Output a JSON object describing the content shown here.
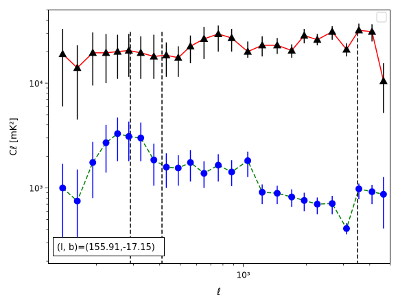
{
  "chart_data": {
    "type": "scatter",
    "xscale": "log",
    "yscale": "log",
    "xlabel": "ℓ",
    "ylabel": "Cℓ  [mK²]",
    "xlim": [
      118,
      5000
    ],
    "ylim": [
      190,
      50000
    ],
    "x_major_ticks": [
      {
        "value": 1000,
        "label": "10³"
      }
    ],
    "y_major_ticks": [
      {
        "value": 1000,
        "label": "10³"
      },
      {
        "value": 10000,
        "label": "10⁴"
      }
    ],
    "annotation": "(l, b)=(155.91,-17.15)",
    "annotation_position": "bottom-left",
    "legend_position": "top-right",
    "vlines": [
      {
        "x": 290,
        "style": "dashed"
      },
      {
        "x": 410,
        "style": "dashed"
      },
      {
        "x": 3500,
        "style": "dashed"
      }
    ],
    "series": [
      {
        "marker": "triangle",
        "marker_color": "#000000",
        "line_color": "#ff0000",
        "line_style": "solid",
        "x": [
          138,
          162,
          192,
          222,
          252,
          285,
          325,
          375,
          430,
          490,
          560,
          650,
          760,
          880,
          1050,
          1230,
          1450,
          1700,
          1950,
          2250,
          2650,
          3100,
          3550,
          4100,
          4650
        ],
        "y": [
          19000,
          14000,
          19500,
          19500,
          20000,
          20500,
          19500,
          18000,
          18500,
          17500,
          22500,
          26500,
          29500,
          27000,
          20000,
          23000,
          23000,
          20500,
          28500,
          26000,
          31000,
          21000,
          32000,
          31000,
          10500
        ],
        "err_low": [
          13000,
          9500,
          10000,
          9500,
          9000,
          9000,
          8500,
          7000,
          7000,
          6000,
          7000,
          9500,
          9500,
          7000,
          2500,
          5000,
          4000,
          3000,
          4500,
          3000,
          5000,
          3000,
          2000,
          6000,
          5300
        ],
        "err_high": [
          14000,
          9000,
          11000,
          10000,
          9000,
          9000,
          8500,
          11000,
          6000,
          5000,
          6000,
          8000,
          6000,
          6000,
          5000,
          5000,
          4000,
          3000,
          4500,
          3500,
          4000,
          3000,
          5000,
          5500,
          5000
        ]
      },
      {
        "marker": "circle",
        "marker_color": "#0000ff",
        "line_color": "#008000",
        "line_style": "dashed",
        "x": [
          138,
          162,
          192,
          222,
          252,
          285,
          325,
          375,
          430,
          490,
          560,
          650,
          760,
          880,
          1050,
          1230,
          1450,
          1700,
          1950,
          2250,
          2650,
          3100,
          3550,
          4100,
          4650
        ],
        "y": [
          1000,
          750,
          1750,
          2700,
          3300,
          3100,
          3000,
          1850,
          1580,
          1550,
          1750,
          1380,
          1650,
          1420,
          1820,
          910,
          890,
          820,
          760,
          700,
          710,
          410,
          980,
          920,
          870
        ],
        "err_low": [
          700,
          500,
          950,
          1300,
          1500,
          1300,
          1200,
          800,
          580,
          500,
          600,
          380,
          500,
          380,
          550,
          210,
          190,
          160,
          160,
          140,
          150,
          50,
          200,
          220,
          460
        ],
        "err_high": [
          700,
          750,
          1000,
          1300,
          1400,
          1200,
          1200,
          800,
          560,
          500,
          550,
          420,
          450,
          420,
          400,
          170,
          160,
          150,
          140,
          110,
          130,
          50,
          120,
          150,
          400
        ]
      }
    ]
  }
}
